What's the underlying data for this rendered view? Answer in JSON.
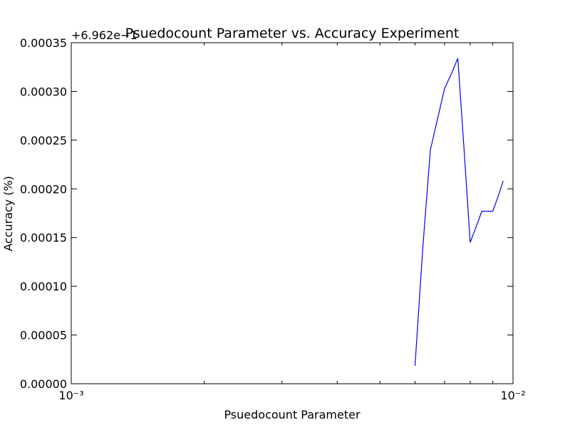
{
  "chart_data": {
    "type": "line",
    "title": "Psuedocount Parameter vs. Accuracy Experiment",
    "x_label": "Psuedocount Parameter",
    "y_label": "Accuracy (%)",
    "y_offset_label": "+6.962e−1",
    "x_log": true,
    "x": [
      0.006,
      0.00625,
      0.0065,
      0.00675,
      0.007,
      0.00725,
      0.0075,
      0.00775,
      0.008,
      0.00825,
      0.0085,
      0.00875,
      0.009,
      0.00925,
      0.0095
    ],
    "series": [
      {
        "name": "accuracy",
        "color": "#0000ff",
        "values": [
          1.83e-05,
          0.00014,
          0.00024,
          0.000272,
          0.000303,
          0.000318,
          0.000334,
          0.00024,
          0.000145,
          0.000161,
          0.000177,
          0.000177,
          0.000177,
          0.000192,
          0.000208
        ]
      }
    ],
    "xlim": [
      0.001,
      0.01
    ],
    "xticks": [
      {
        "value": 0.001,
        "label": "10⁻³"
      },
      {
        "value": 0.01,
        "label": "10⁻²"
      }
    ],
    "xminor_ticks": [
      0.002,
      0.003,
      0.004,
      0.005,
      0.006,
      0.007,
      0.008,
      0.009
    ],
    "ylim": [
      0,
      0.00035
    ],
    "yticks": [
      {
        "value": 0,
        "label": "0.00000"
      },
      {
        "value": 5e-05,
        "label": "0.00005"
      },
      {
        "value": 0.0001,
        "label": "0.00010"
      },
      {
        "value": 0.00015,
        "label": "0.00015"
      },
      {
        "value": 0.0002,
        "label": "0.00020"
      },
      {
        "value": 0.00025,
        "label": "0.00025"
      },
      {
        "value": 0.0003,
        "label": "0.00030"
      },
      {
        "value": 0.00035,
        "label": "0.00035"
      }
    ]
  }
}
